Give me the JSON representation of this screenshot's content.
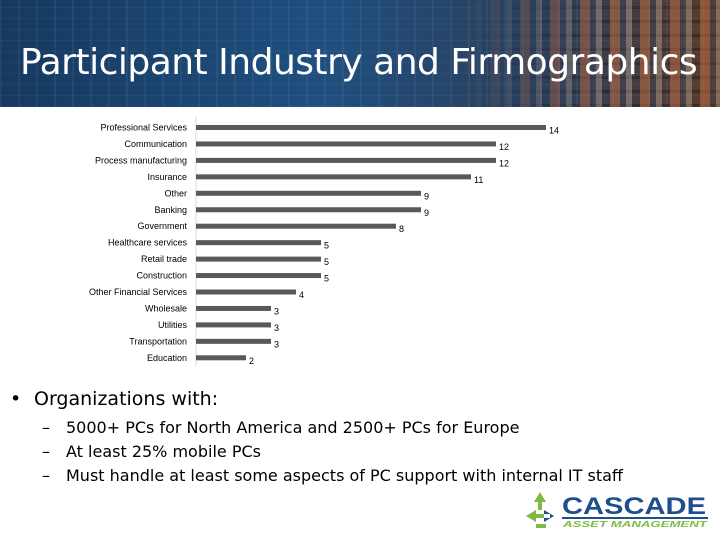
{
  "slide": {
    "title": "Participant Industry and Firmographics",
    "bullet_main": "Organizations with:",
    "sub_bullets": [
      "5000+ PCs for North America and 2500+ PCs for Europe",
      "At least 25% mobile PCs",
      "Must handle at least some aspects of PC support with internal IT staff"
    ]
  },
  "logo": {
    "name": "CASCADE",
    "tagline": "ASSET MANAGEMENT",
    "icon": "recycle-arrows-icon",
    "colors": {
      "green": "#7dbb42",
      "blue": "#1e4f8c"
    }
  },
  "chart_data": {
    "type": "bar",
    "orientation": "horizontal",
    "categories": [
      "Professional Services",
      "Communication",
      "Process manufacturing",
      "Insurance",
      "Other",
      "Banking",
      "Government",
      "Healthcare services",
      "Retail trade",
      "Construction",
      "Other Financial Services",
      "Wholesale",
      "Utilities",
      "Transportation",
      "Education"
    ],
    "values": [
      14,
      12,
      12,
      11,
      9,
      9,
      8,
      5,
      5,
      5,
      4,
      3,
      3,
      3,
      2
    ],
    "xlim": [
      0,
      14
    ],
    "bar_color": "#595959",
    "grid": false
  }
}
